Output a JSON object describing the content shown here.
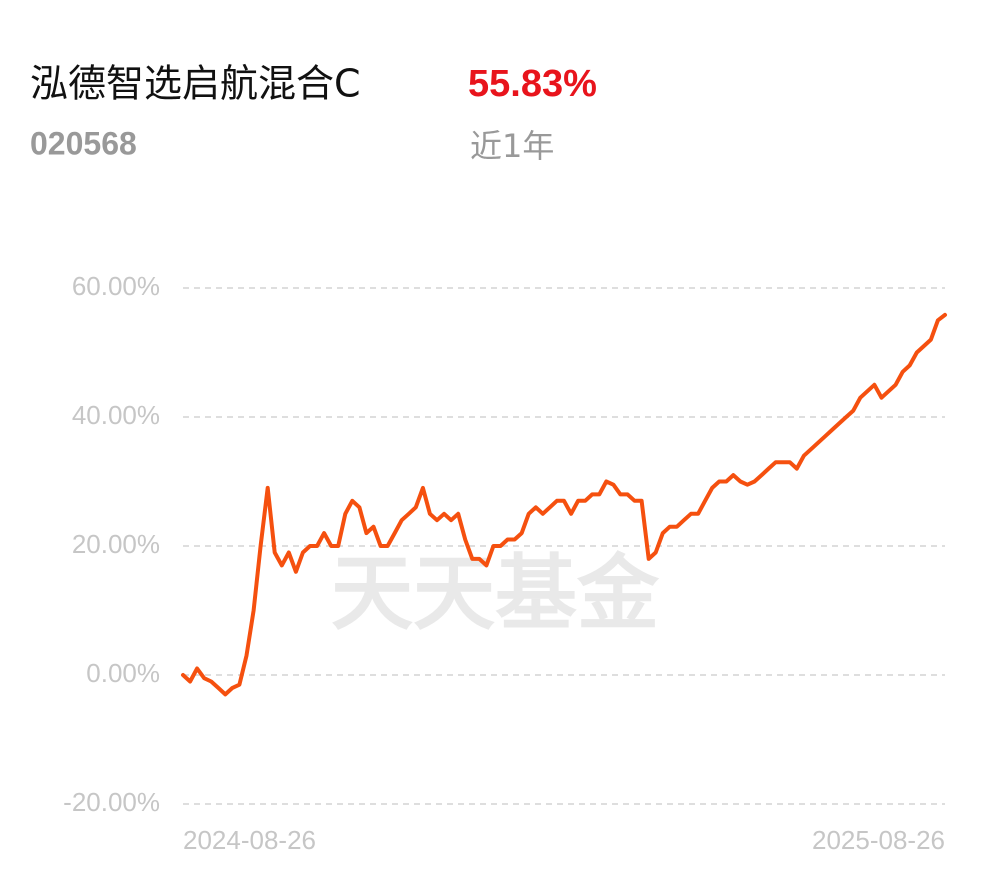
{
  "chart_data": {
    "type": "line",
    "title": "泓德智选启航混合C",
    "return_text": "55.83%",
    "code": "020568",
    "period": "近1年",
    "watermark": "天天基金",
    "categories": [
      "2024-08-26",
      null,
      null,
      null,
      null,
      null,
      null,
      null,
      null,
      null,
      null,
      null,
      null,
      null,
      null,
      null,
      null,
      null,
      null,
      null,
      null,
      null,
      null,
      null,
      null,
      null,
      null,
      null,
      null,
      null,
      null,
      null,
      null,
      null,
      null,
      null,
      null,
      null,
      null,
      null,
      null,
      null,
      null,
      null,
      null,
      null,
      null,
      null,
      null,
      null,
      null,
      null,
      null,
      null,
      null,
      null,
      null,
      null,
      null,
      null,
      null,
      null,
      null,
      null,
      null,
      null,
      null,
      null,
      null,
      null,
      null,
      null,
      null,
      null,
      null,
      null,
      null,
      null,
      null,
      null,
      null,
      null,
      null,
      null,
      null,
      null,
      null,
      null,
      null,
      null,
      null,
      null,
      null,
      null,
      null,
      null,
      null,
      null,
      null,
      null,
      null,
      null,
      null,
      null,
      null,
      null,
      null,
      null,
      "2025-08-26"
    ],
    "series": [
      {
        "color": "#f5500f",
        "values": [
          0,
          -1,
          1,
          -0.5,
          -1,
          -2,
          -3,
          -2,
          -1.5,
          3,
          10,
          20,
          29,
          19,
          17,
          19,
          16,
          19,
          20,
          20,
          22,
          20,
          20,
          25,
          27,
          26,
          22,
          23,
          20,
          20,
          22,
          24,
          25,
          26,
          29,
          25,
          24,
          25,
          24,
          25,
          21,
          18,
          18,
          17,
          20,
          20,
          21,
          21,
          22,
          25,
          26,
          25,
          26,
          27,
          27,
          25,
          27,
          27,
          28,
          28,
          30,
          29.5,
          28,
          28,
          27,
          27,
          18,
          19,
          22,
          23,
          23,
          24,
          25,
          25,
          27,
          29,
          30,
          30,
          31,
          30,
          29.5,
          30,
          31,
          32,
          33,
          33,
          33,
          32,
          34,
          35,
          36,
          37,
          38,
          39,
          40,
          41,
          43,
          44,
          45,
          43,
          44,
          45,
          47,
          48,
          50,
          51,
          52,
          55,
          55.83
        ]
      }
    ],
    "ylim": [
      -20,
      60
    ],
    "yticks": [
      {
        "value": -20,
        "label": "-20.00%"
      },
      {
        "value": 0,
        "label": "0.00%"
      },
      {
        "value": 20,
        "label": "20.00%"
      },
      {
        "value": 40,
        "label": "40.00%"
      },
      {
        "value": 60,
        "label": "60.00%"
      }
    ],
    "grid": true
  }
}
